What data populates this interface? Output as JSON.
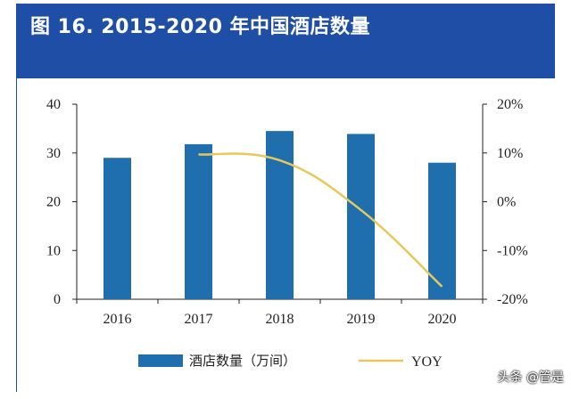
{
  "header": {
    "title": "图 16. 2015-2020 年中国酒店数量"
  },
  "colors": {
    "header_bg": "#1f4ea6",
    "bar": "#1f6fae",
    "line": "#e7c85a",
    "axis": "#222222"
  },
  "chart_data": {
    "type": "bar",
    "title": "",
    "xlabel": "",
    "ylabel": "",
    "categories": [
      "2016",
      "2017",
      "2018",
      "2019",
      "2020"
    ],
    "series": [
      {
        "name": "酒店数量（万间）",
        "type": "bar",
        "axis": "left",
        "values": [
          29,
          31.8,
          34.5,
          33.9,
          28
        ]
      },
      {
        "name": "YOY",
        "type": "line",
        "axis": "right",
        "values": [
          null,
          9.7,
          8.5,
          -1.7,
          -17.4
        ]
      }
    ],
    "ylim": [
      0,
      40
    ],
    "yticks": [
      "0",
      "10",
      "20",
      "30",
      "40"
    ],
    "y2lim": [
      -20,
      20
    ],
    "y2ticks": [
      "-20%",
      "-10%",
      "0%",
      "10%",
      "20%"
    ],
    "grid": false,
    "legend": "bottom"
  },
  "watermark": "头条 @管是"
}
